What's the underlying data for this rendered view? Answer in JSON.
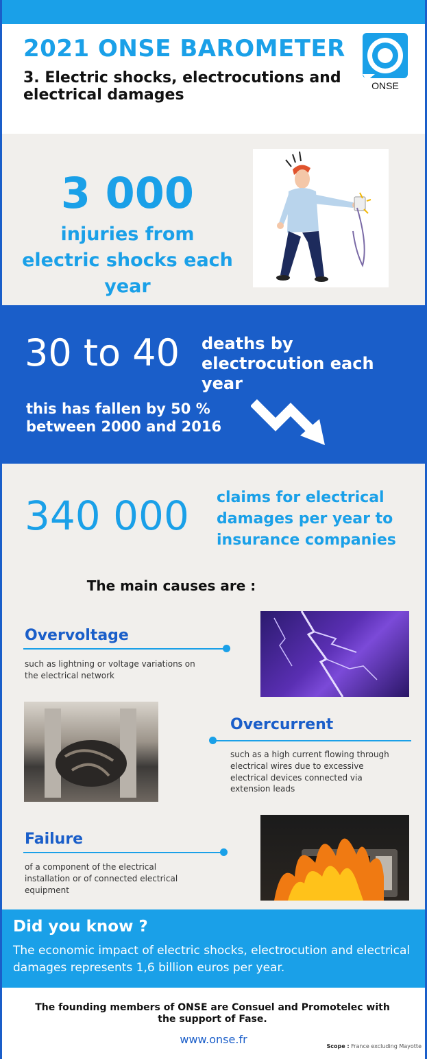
{
  "header": {
    "title": "2021 ONSE BAROMETER",
    "subtitle": "3. Electric shocks, electrocutions and electrical damages",
    "logo_text": "ONSE"
  },
  "injuries": {
    "number": "3 000",
    "text": "injuries from electric shocks each year"
  },
  "deaths": {
    "number": "30 to 40",
    "text": "deaths by electrocution each year",
    "trend": "this has fallen by 50 % between 2000 and 2016"
  },
  "claims": {
    "number": "340 000",
    "text": "claims for electrical damages per year to insurance companies"
  },
  "causes": {
    "heading": "The main causes are :",
    "items": [
      {
        "title": "Overvoltage",
        "description": "such as lightning or voltage variations on the electrical network"
      },
      {
        "title": "Overcurrent",
        "description": "such as a high current flowing through electrical wires due to excessive electrical devices connected via extension leads"
      },
      {
        "title": "Failure",
        "description": "of a component of the electrical installation or of connected electrical equipment"
      }
    ]
  },
  "did_you_know": {
    "title": "Did you know ?",
    "text": "The economic impact of electric shocks, electrocution and electrical damages represents 1,6 billion euros per year."
  },
  "footer": {
    "members": "The founding members of ONSE are Consuel and Promotelec with the support of Fase.",
    "url": "www.onse.fr",
    "scope_label": "Scope :",
    "scope_value": "France excluding Mayotte"
  },
  "colors": {
    "light_blue": "#1aa0e8",
    "dark_blue": "#1a5ec9",
    "beige": "#f1efec"
  }
}
